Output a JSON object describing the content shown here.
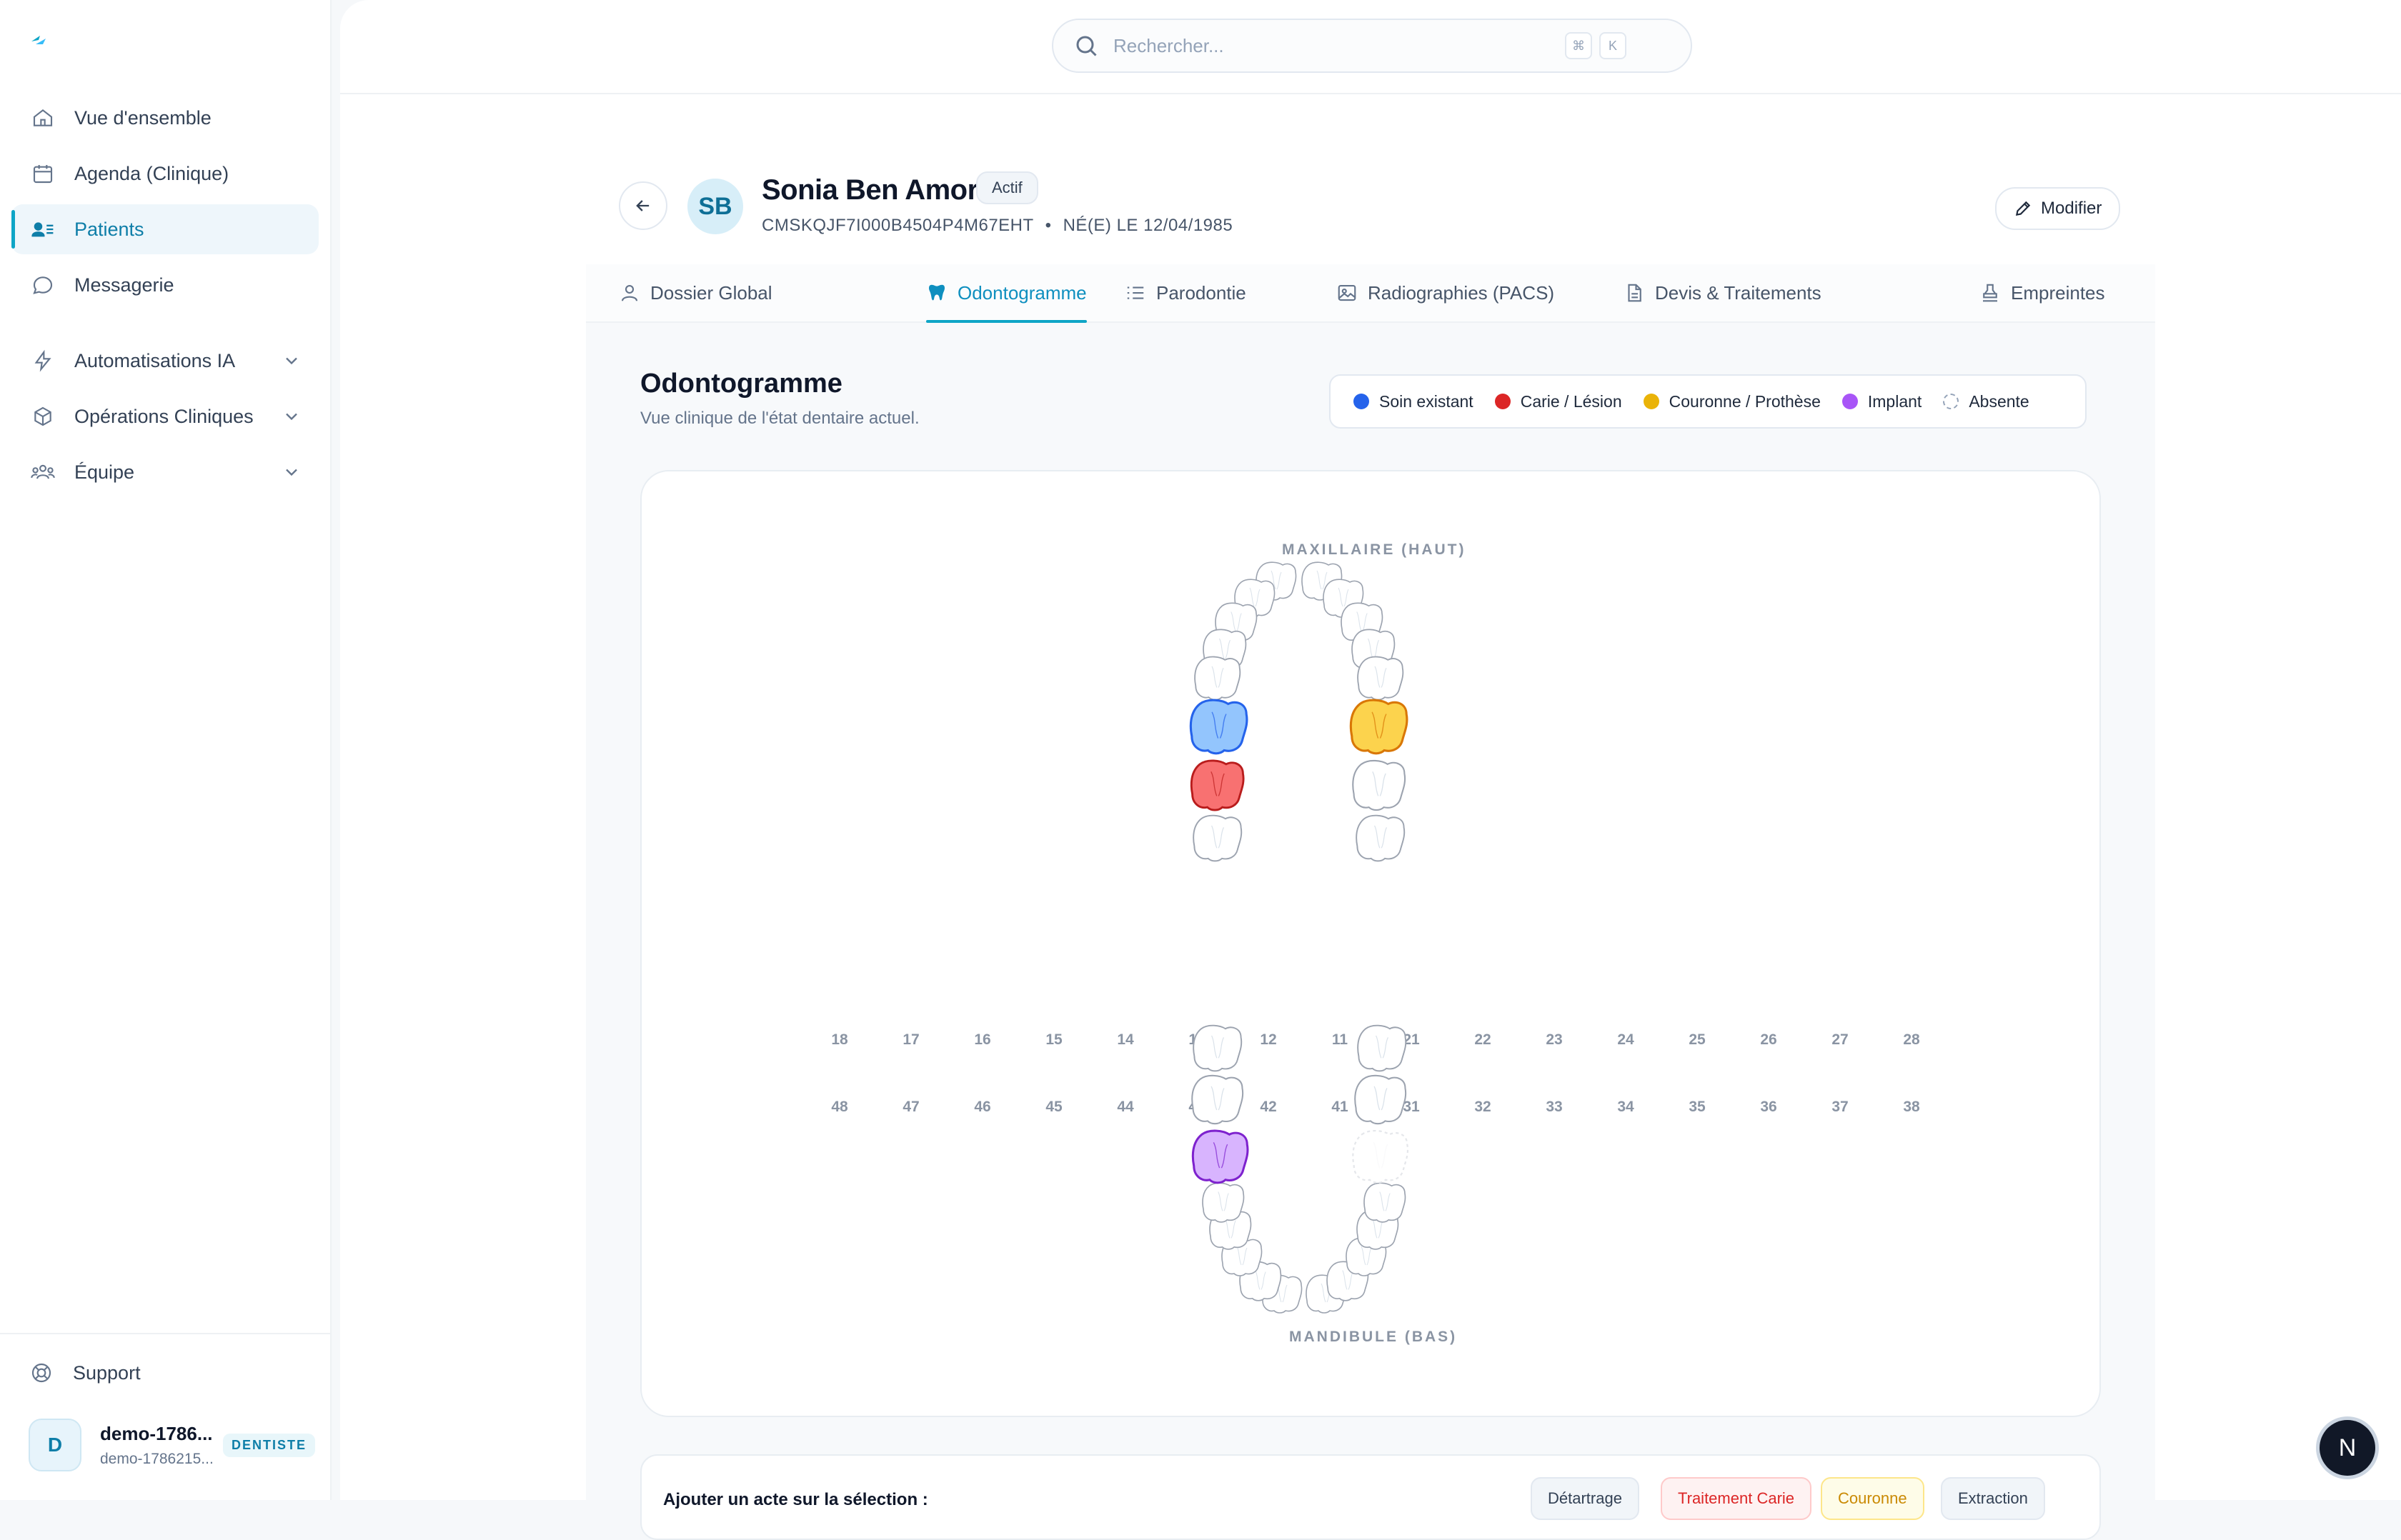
{
  "sidebar": {
    "items": [
      {
        "label": "Vue d'ensemble",
        "icon": "home-icon"
      },
      {
        "label": "Agenda (Clinique)",
        "icon": "calendar-icon"
      },
      {
        "label": "Patients",
        "icon": "patients-icon",
        "active": true
      },
      {
        "label": "Messagerie",
        "icon": "message-icon"
      }
    ],
    "groups": [
      {
        "label": "Automatisations IA",
        "icon": "bolt-icon"
      },
      {
        "label": "Opérations Cliniques",
        "icon": "box-icon"
      },
      {
        "label": "Équipe",
        "icon": "team-icon"
      }
    ],
    "support_label": "Support",
    "user": {
      "initial": "D",
      "name": "demo-1786...",
      "sub": "demo-1786215...",
      "role": "DENTISTE"
    }
  },
  "search": {
    "placeholder": "Rechercher...",
    "shortcut_cmd": "⌘",
    "shortcut_key": "K"
  },
  "patient": {
    "initials": "SB",
    "name": "Sonia Ben Amor",
    "status": "Actif",
    "id": "CMSKQJF7I000B4504P4M67EHT",
    "separator": "•",
    "birth": "NÉ(E) LE 12/04/1985",
    "edit_label": "Modifier"
  },
  "tabs": [
    {
      "label": "Dossier Global",
      "icon": "user-icon"
    },
    {
      "label": "Odontogramme",
      "icon": "tooth-icon",
      "active": true
    },
    {
      "label": "Parodontie",
      "icon": "list-icon"
    },
    {
      "label": "Radiographies (PACS)",
      "icon": "image-icon"
    },
    {
      "label": "Devis & Traitements",
      "icon": "document-icon"
    },
    {
      "label": "Empreintes",
      "icon": "stamp-icon"
    }
  ],
  "section": {
    "title": "Odontogramme",
    "subtitle": "Vue clinique de l'état dentaire actuel."
  },
  "legend": [
    {
      "label": "Soin existant",
      "color": "#2563eb"
    },
    {
      "label": "Carie / Lésion",
      "color": "#dc2626"
    },
    {
      "label": "Couronne / Prothèse",
      "color": "#eab308"
    },
    {
      "label": "Implant",
      "color": "#a855f7"
    },
    {
      "label": "Absente",
      "color": "dashed"
    }
  ],
  "odontogram": {
    "upper_label": "MAXILLAIRE (HAUT)",
    "lower_label": "MANDIBULE (BAS)",
    "upper_numbers": [
      "18",
      "17",
      "16",
      "15",
      "14",
      "13",
      "12",
      "11",
      "21",
      "22",
      "23",
      "24",
      "25",
      "26",
      "27",
      "28"
    ],
    "lower_numbers": [
      "48",
      "47",
      "46",
      "45",
      "44",
      "43",
      "42",
      "41",
      "31",
      "32",
      "33",
      "34",
      "35",
      "36",
      "37",
      "38"
    ],
    "tooth_states": {
      "16": "soin-existant",
      "17": "carie",
      "26": "couronne",
      "46": "implant",
      "36": "absente"
    }
  },
  "actions": {
    "label": "Ajouter un acte sur la sélection :",
    "buttons": [
      "Détartrage",
      "Traitement Carie",
      "Couronne",
      "Extraction"
    ]
  },
  "fab_label": "N"
}
